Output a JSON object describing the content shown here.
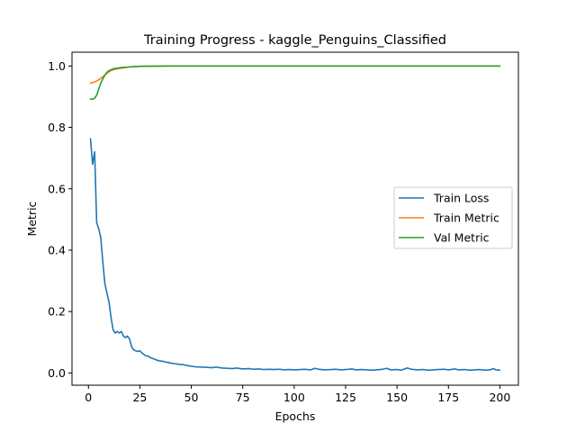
{
  "chart_data": {
    "type": "line",
    "title": "Training Progress - kaggle_Penguins_Classified",
    "xlabel": "Epochs",
    "ylabel": "Metric",
    "xlim": [
      -8,
      209
    ],
    "ylim": [
      -0.04,
      1.045
    ],
    "xticks": [
      0,
      25,
      50,
      75,
      100,
      125,
      150,
      175,
      200
    ],
    "yticks": [
      0.0,
      0.2,
      0.4,
      0.6,
      0.8,
      1.0
    ],
    "ytick_labels": [
      "0.0",
      "0.2",
      "0.4",
      "0.6",
      "0.8",
      "1.0"
    ],
    "grid": false,
    "legend_position": "center-right",
    "series": [
      {
        "name": "Train Loss",
        "color": "#1f77b4",
        "points": [
          [
            1,
            0.763
          ],
          [
            2,
            0.68
          ],
          [
            3,
            0.72
          ],
          [
            4,
            0.49
          ],
          [
            5,
            0.47
          ],
          [
            6,
            0.44
          ],
          [
            7,
            0.36
          ],
          [
            8,
            0.29
          ],
          [
            9,
            0.26
          ],
          [
            10,
            0.23
          ],
          [
            11,
            0.18
          ],
          [
            12,
            0.14
          ],
          [
            13,
            0.13
          ],
          [
            14,
            0.135
          ],
          [
            15,
            0.13
          ],
          [
            16,
            0.135
          ],
          [
            17,
            0.12
          ],
          [
            18,
            0.115
          ],
          [
            19,
            0.12
          ],
          [
            20,
            0.11
          ],
          [
            21,
            0.085
          ],
          [
            22,
            0.075
          ],
          [
            23,
            0.072
          ],
          [
            24,
            0.07
          ],
          [
            25,
            0.072
          ],
          [
            26,
            0.065
          ],
          [
            27,
            0.06
          ],
          [
            28,
            0.055
          ],
          [
            29,
            0.055
          ],
          [
            30,
            0.05
          ],
          [
            32,
            0.045
          ],
          [
            34,
            0.04
          ],
          [
            36,
            0.038
          ],
          [
            38,
            0.035
          ],
          [
            40,
            0.032
          ],
          [
            42,
            0.03
          ],
          [
            44,
            0.028
          ],
          [
            46,
            0.027
          ],
          [
            48,
            0.024
          ],
          [
            50,
            0.022
          ],
          [
            52,
            0.02
          ],
          [
            55,
            0.019
          ],
          [
            58,
            0.018
          ],
          [
            60,
            0.017
          ],
          [
            62,
            0.019
          ],
          [
            65,
            0.016
          ],
          [
            68,
            0.015
          ],
          [
            70,
            0.014
          ],
          [
            72,
            0.016
          ],
          [
            75,
            0.013
          ],
          [
            78,
            0.014
          ],
          [
            80,
            0.012
          ],
          [
            83,
            0.013
          ],
          [
            85,
            0.011
          ],
          [
            88,
            0.012
          ],
          [
            90,
            0.011
          ],
          [
            93,
            0.012
          ],
          [
            95,
            0.01
          ],
          [
            98,
            0.011
          ],
          [
            100,
            0.01
          ],
          [
            103,
            0.011
          ],
          [
            105,
            0.012
          ],
          [
            108,
            0.01
          ],
          [
            110,
            0.015
          ],
          [
            112,
            0.012
          ],
          [
            115,
            0.01
          ],
          [
            118,
            0.011
          ],
          [
            120,
            0.012
          ],
          [
            123,
            0.01
          ],
          [
            125,
            0.011
          ],
          [
            128,
            0.013
          ],
          [
            130,
            0.01
          ],
          [
            133,
            0.011
          ],
          [
            135,
            0.01
          ],
          [
            138,
            0.009
          ],
          [
            140,
            0.01
          ],
          [
            143,
            0.012
          ],
          [
            145,
            0.015
          ],
          [
            147,
            0.01
          ],
          [
            150,
            0.011
          ],
          [
            152,
            0.009
          ],
          [
            155,
            0.016
          ],
          [
            157,
            0.012
          ],
          [
            160,
            0.01
          ],
          [
            163,
            0.011
          ],
          [
            165,
            0.009
          ],
          [
            168,
            0.01
          ],
          [
            170,
            0.011
          ],
          [
            173,
            0.012
          ],
          [
            175,
            0.01
          ],
          [
            178,
            0.013
          ],
          [
            180,
            0.01
          ],
          [
            183,
            0.011
          ],
          [
            185,
            0.009
          ],
          [
            188,
            0.01
          ],
          [
            190,
            0.011
          ],
          [
            193,
            0.009
          ],
          [
            195,
            0.01
          ],
          [
            197,
            0.014
          ],
          [
            198,
            0.01
          ],
          [
            200,
            0.009
          ]
        ]
      },
      {
        "name": "Train Metric",
        "color": "#ff7f0e",
        "points": [
          [
            1,
            0.944
          ],
          [
            2,
            0.946
          ],
          [
            3,
            0.948
          ],
          [
            4,
            0.951
          ],
          [
            5,
            0.955
          ],
          [
            6,
            0.96
          ],
          [
            7,
            0.965
          ],
          [
            8,
            0.971
          ],
          [
            9,
            0.976
          ],
          [
            10,
            0.981
          ],
          [
            11,
            0.985
          ],
          [
            12,
            0.988
          ],
          [
            14,
            0.991
          ],
          [
            16,
            0.993
          ],
          [
            18,
            0.995
          ],
          [
            20,
            0.997
          ],
          [
            22,
            0.998
          ],
          [
            25,
            0.999
          ],
          [
            30,
            0.9995
          ],
          [
            40,
            1.0
          ],
          [
            60,
            1.0
          ],
          [
            100,
            1.0
          ],
          [
            150,
            1.0
          ],
          [
            200,
            1.0
          ]
        ]
      },
      {
        "name": "Val Metric",
        "color": "#2ca02c",
        "points": [
          [
            1,
            0.892
          ],
          [
            2,
            0.892
          ],
          [
            3,
            0.895
          ],
          [
            4,
            0.905
          ],
          [
            5,
            0.925
          ],
          [
            6,
            0.945
          ],
          [
            7,
            0.958
          ],
          [
            8,
            0.97
          ],
          [
            9,
            0.98
          ],
          [
            10,
            0.985
          ],
          [
            11,
            0.988
          ],
          [
            12,
            0.991
          ],
          [
            14,
            0.993
          ],
          [
            16,
            0.995
          ],
          [
            18,
            0.996
          ],
          [
            20,
            0.997
          ],
          [
            22,
            0.998
          ],
          [
            25,
            0.999
          ],
          [
            30,
            0.9995
          ],
          [
            40,
            1.0
          ],
          [
            60,
            1.0
          ],
          [
            100,
            1.0
          ],
          [
            150,
            1.0
          ],
          [
            200,
            1.0
          ]
        ]
      }
    ]
  }
}
